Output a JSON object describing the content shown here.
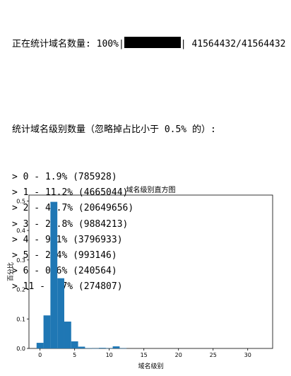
{
  "console": {
    "progress": {
      "prefix": "正在统计域名数量: ",
      "percent_text": "100%",
      "bar_fraction": 1.0,
      "count_text": "41564432/41564432"
    },
    "heading": "统计域名级别数量（忽略掉占比小于 0.5% 的）:",
    "lines": [
      "> 0 - 1.9% (785928)",
      "> 1 - 11.2% (4665044)",
      "> 2 - 49.7% (20649656)",
      "> 3 - 23.8% (9884213)",
      "> 4 - 9.1% (3796933)",
      "> 5 - 2.4% (993146)",
      "> 6 - 0.6% (240564)",
      "> 11 - 0.7% (274807)"
    ]
  },
  "chart_data": {
    "type": "bar",
    "title": "域名级别直方图",
    "xlabel": "域名级别",
    "ylabel": "百分比",
    "xlim": [
      -1.6,
      33.6
    ],
    "ylim": [
      0,
      0.52
    ],
    "xticks": [
      0,
      5,
      10,
      15,
      20,
      25,
      30
    ],
    "yticks": [
      0.0,
      0.1,
      0.2,
      0.3,
      0.4,
      0.5
    ],
    "ytick_labels": [
      "0.0",
      "0.1",
      "0.2",
      "0.3",
      "0.4",
      "0.5"
    ],
    "bin_width": 1.0,
    "bins": [
      {
        "x": 0,
        "value": 0.019
      },
      {
        "x": 1,
        "value": 0.112
      },
      {
        "x": 2,
        "value": 0.497
      },
      {
        "x": 3,
        "value": 0.238
      },
      {
        "x": 4,
        "value": 0.091
      },
      {
        "x": 5,
        "value": 0.024
      },
      {
        "x": 6,
        "value": 0.006
      },
      {
        "x": 7,
        "value": 0.001
      },
      {
        "x": 8,
        "value": 0.0004
      },
      {
        "x": 9,
        "value": 0.002
      },
      {
        "x": 10,
        "value": 0.0006
      },
      {
        "x": 11,
        "value": 0.007
      },
      {
        "x": 12,
        "value": 0.0007
      }
    ],
    "bar_color": "#1f77b4",
    "grid": false
  }
}
